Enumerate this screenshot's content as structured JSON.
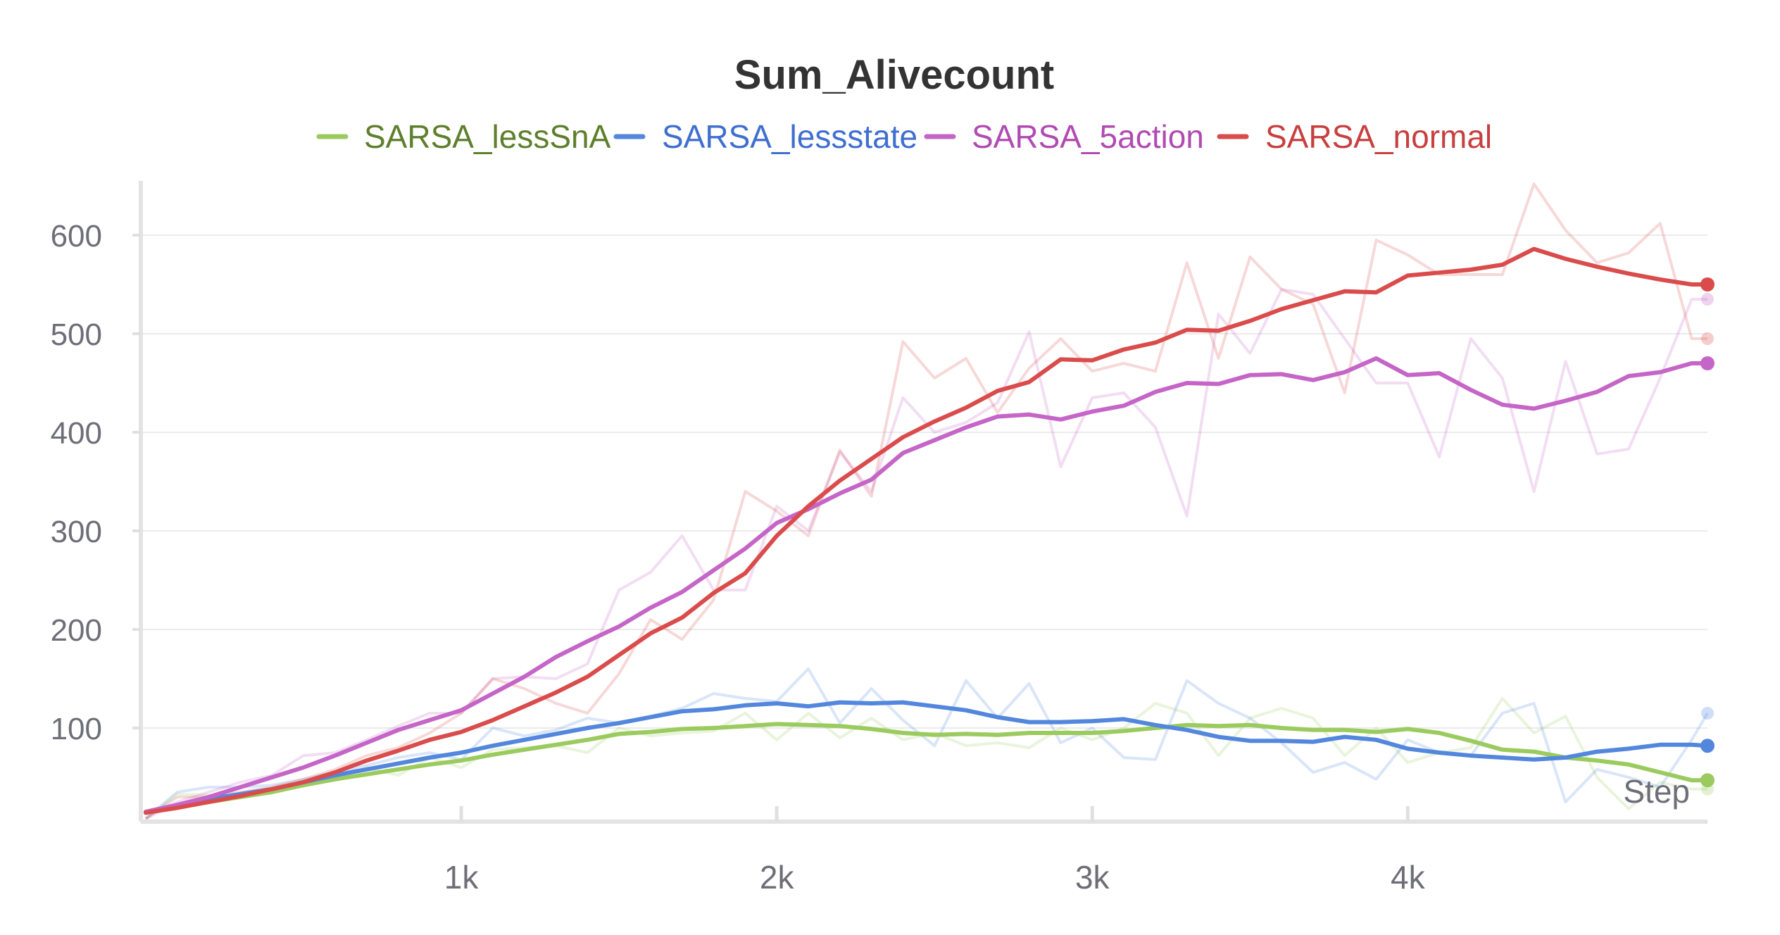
{
  "chart_data": {
    "type": "line",
    "title": "Sum_Alivecount",
    "xlabel": "Step",
    "ylabel": "",
    "xlim": [
      0,
      4950
    ],
    "ylim": [
      5,
      655
    ],
    "xticks": [
      {
        "value": 1000,
        "label": "1k"
      },
      {
        "value": 2000,
        "label": "2k"
      },
      {
        "value": 3000,
        "label": "3k"
      },
      {
        "value": 4000,
        "label": "4k"
      }
    ],
    "yticks": [
      {
        "value": 100,
        "label": "100"
      },
      {
        "value": 200,
        "label": "200"
      },
      {
        "value": 300,
        "label": "300"
      },
      {
        "value": 400,
        "label": "400"
      },
      {
        "value": 500,
        "label": "500"
      },
      {
        "value": 600,
        "label": "600"
      }
    ],
    "grid": true,
    "legend_position": "top-center",
    "x": [
      0,
      100,
      200,
      300,
      400,
      500,
      600,
      700,
      800,
      900,
      1000,
      1100,
      1200,
      1300,
      1400,
      1500,
      1600,
      1700,
      1800,
      1900,
      2000,
      2100,
      2200,
      2300,
      2400,
      2500,
      2600,
      2700,
      2800,
      2900,
      3000,
      3100,
      3200,
      3300,
      3400,
      3500,
      3600,
      3700,
      3800,
      3900,
      4000,
      4100,
      4200,
      4300,
      4400,
      4500,
      4600,
      4700,
      4800,
      4900,
      4950
    ],
    "series": [
      {
        "name": "SARSA_lessSnA",
        "color": "#9bcb5f",
        "smoothed": [
          15,
          20,
          25,
          30,
          35,
          42,
          48,
          53,
          58,
          63,
          67,
          73,
          78,
          83,
          88,
          94,
          96,
          99,
          100,
          102,
          104,
          103,
          102,
          99,
          95,
          93,
          94,
          93,
          95,
          95,
          95,
          97,
          100,
          103,
          102,
          103,
          100,
          98,
          98,
          96,
          99,
          95,
          87,
          78,
          76,
          70,
          67,
          63,
          55,
          47,
          47
        ],
        "raw": [
          8,
          33,
          32,
          30,
          38,
          42,
          47,
          60,
          52,
          70,
          60,
          78,
          80,
          82,
          75,
          100,
          92,
          95,
          97,
          115,
          88,
          115,
          90,
          110,
          88,
          95,
          82,
          85,
          80,
          100,
          88,
          100,
          125,
          115,
          72,
          110,
          120,
          110,
          72,
          100,
          65,
          75,
          80,
          130,
          95,
          112,
          50,
          18,
          45,
          38,
          38
        ]
      },
      {
        "name": "SARSA_lessstate",
        "color": "#5387dd",
        "smoothed": [
          15,
          22,
          28,
          33,
          38,
          45,
          52,
          58,
          64,
          70,
          75,
          82,
          88,
          94,
          100,
          105,
          111,
          117,
          119,
          123,
          125,
          122,
          126,
          125,
          126,
          122,
          118,
          111,
          106,
          106,
          107,
          109,
          103,
          98,
          91,
          87,
          87,
          86,
          91,
          88,
          79,
          75,
          72,
          70,
          68,
          70,
          76,
          79,
          83,
          83,
          82
        ],
        "raw": [
          8,
          35,
          40,
          40,
          42,
          48,
          55,
          62,
          70,
          75,
          68,
          100,
          92,
          98,
          110,
          105,
          112,
          120,
          135,
          130,
          127,
          160,
          105,
          140,
          108,
          82,
          148,
          110,
          145,
          85,
          100,
          70,
          68,
          148,
          125,
          110,
          85,
          55,
          65,
          48,
          88,
          75,
          72,
          115,
          125,
          25,
          58,
          50,
          40,
          88,
          115
        ]
      },
      {
        "name": "SARSA_5action",
        "color": "#c565c7",
        "smoothed": [
          15,
          22,
          30,
          40,
          50,
          60,
          72,
          85,
          98,
          108,
          118,
          135,
          152,
          172,
          188,
          203,
          222,
          238,
          260,
          282,
          308,
          322,
          338,
          352,
          379,
          392,
          405,
          416,
          418,
          413,
          421,
          427,
          441,
          450,
          449,
          458,
          459,
          453,
          461,
          475,
          458,
          460,
          443,
          428,
          424,
          432,
          441,
          457,
          461,
          470,
          470
        ],
        "raw": [
          8,
          25,
          35,
          45,
          52,
          72,
          75,
          88,
          102,
          115,
          115,
          150,
          152,
          150,
          165,
          240,
          258,
          295,
          240,
          240,
          325,
          300,
          380,
          340,
          435,
          400,
          410,
          430,
          502,
          365,
          435,
          440,
          405,
          315,
          520,
          480,
          545,
          540,
          495,
          450,
          450,
          375,
          495,
          455,
          340,
          472,
          378,
          383,
          455,
          535,
          535
        ]
      },
      {
        "name": "SARSA_normal",
        "color": "#da4c4c",
        "smoothed": [
          14,
          19,
          25,
          31,
          38,
          45,
          55,
          67,
          77,
          88,
          96,
          108,
          122,
          136,
          152,
          174,
          196,
          212,
          237,
          257,
          295,
          325,
          351,
          373,
          395,
          411,
          425,
          442,
          451,
          474,
          473,
          484,
          491,
          504,
          503,
          513,
          525,
          534,
          543,
          542,
          559,
          562,
          565,
          570,
          586,
          576,
          568,
          561,
          555,
          550,
          550
        ],
        "raw": [
          8,
          30,
          30,
          35,
          40,
          48,
          58,
          72,
          80,
          95,
          115,
          150,
          140,
          125,
          115,
          155,
          210,
          190,
          230,
          340,
          320,
          295,
          382,
          335,
          492,
          455,
          475,
          420,
          465,
          495,
          462,
          470,
          462,
          572,
          475,
          578,
          545,
          530,
          440,
          595,
          580,
          560,
          560,
          560,
          652,
          605,
          572,
          582,
          612,
          495,
          495
        ]
      }
    ]
  }
}
